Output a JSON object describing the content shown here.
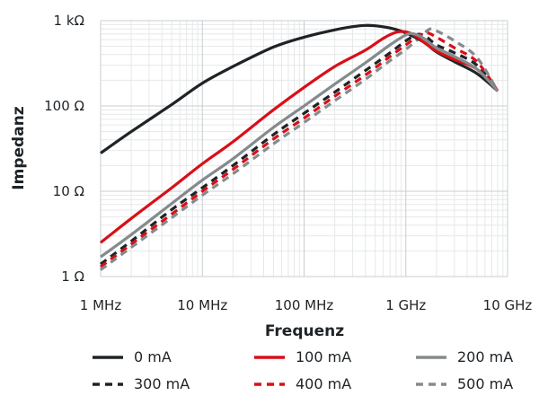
{
  "chart_data": {
    "type": "line",
    "title": "",
    "xlabel": "Frequenz",
    "ylabel": "Impedanz",
    "x_scale": "log",
    "y_scale": "log",
    "xlim": [
      1000000,
      10000000000
    ],
    "ylim": [
      1,
      1000
    ],
    "grid": true,
    "legend_position": "bottom",
    "x_ticks": [
      {
        "value": 1000000,
        "label": "1 MHz"
      },
      {
        "value": 10000000,
        "label": "10 MHz"
      },
      {
        "value": 100000000,
        "label": "100 MHz"
      },
      {
        "value": 1000000000,
        "label": "1 GHz"
      },
      {
        "value": 10000000000,
        "label": "10 GHz"
      }
    ],
    "y_ticks": [
      {
        "value": 1,
        "label": "1 Ω"
      },
      {
        "value": 10,
        "label": "10 Ω"
      },
      {
        "value": 100,
        "label": "100 Ω"
      },
      {
        "value": 1000,
        "label": "1 kΩ"
      }
    ],
    "series": [
      {
        "name": "0 mA",
        "color": "#1f2326",
        "dash": "solid",
        "points": [
          [
            1000000,
            28
          ],
          [
            2000000,
            50
          ],
          [
            5000000,
            104
          ],
          [
            10000000,
            185
          ],
          [
            20000000,
            290
          ],
          [
            50000000,
            490
          ],
          [
            100000000,
            640
          ],
          [
            200000000,
            780
          ],
          [
            300000000,
            850
          ],
          [
            400000000,
            880
          ],
          [
            500000000,
            870
          ],
          [
            700000000,
            820
          ],
          [
            1000000000,
            720
          ],
          [
            1500000000,
            560
          ],
          [
            2000000000,
            430
          ],
          [
            3000000000,
            330
          ],
          [
            5000000000,
            240
          ],
          [
            8000000000,
            150
          ]
        ]
      },
      {
        "name": "100 mA",
        "color": "#d90f18",
        "dash": "solid",
        "points": [
          [
            1000000,
            2.5
          ],
          [
            2000000,
            4.8
          ],
          [
            5000000,
            11
          ],
          [
            10000000,
            21
          ],
          [
            20000000,
            38
          ],
          [
            50000000,
            90
          ],
          [
            100000000,
            165
          ],
          [
            200000000,
            290
          ],
          [
            400000000,
            450
          ],
          [
            600000000,
            620
          ],
          [
            800000000,
            730
          ],
          [
            1000000000,
            740
          ],
          [
            1200000000,
            680
          ],
          [
            1500000000,
            560
          ],
          [
            2000000000,
            440
          ],
          [
            3000000000,
            350
          ],
          [
            5000000000,
            270
          ],
          [
            8000000000,
            150
          ]
        ]
      },
      {
        "name": "200 mA",
        "color": "#858a8c",
        "dash": "solid",
        "points": [
          [
            1000000,
            1.7
          ],
          [
            2000000,
            3.1
          ],
          [
            5000000,
            7.2
          ],
          [
            10000000,
            13.5
          ],
          [
            20000000,
            24
          ],
          [
            50000000,
            56
          ],
          [
            100000000,
            100
          ],
          [
            200000000,
            180
          ],
          [
            400000000,
            320
          ],
          [
            700000000,
            520
          ],
          [
            1000000000,
            680
          ],
          [
            1200000000,
            700
          ],
          [
            1500000000,
            620
          ],
          [
            2000000000,
            480
          ],
          [
            3000000000,
            380
          ],
          [
            5000000000,
            270
          ],
          [
            8000000000,
            150
          ]
        ]
      },
      {
        "name": "300 mA",
        "color": "#1f2326",
        "dash": "dashed",
        "points": [
          [
            1000000,
            1.4
          ],
          [
            2000000,
            2.6
          ],
          [
            5000000,
            6.1
          ],
          [
            10000000,
            11
          ],
          [
            20000000,
            20
          ],
          [
            50000000,
            46
          ],
          [
            100000000,
            82
          ],
          [
            200000000,
            145
          ],
          [
            400000000,
            260
          ],
          [
            700000000,
            420
          ],
          [
            1000000000,
            580
          ],
          [
            1300000000,
            690
          ],
          [
            1600000000,
            640
          ],
          [
            2000000000,
            520
          ],
          [
            3000000000,
            420
          ],
          [
            5000000000,
            300
          ],
          [
            8000000000,
            150
          ]
        ]
      },
      {
        "name": "400 mA",
        "color": "#d90f18",
        "dash": "dashed",
        "points": [
          [
            1000000,
            1.3
          ],
          [
            2000000,
            2.4
          ],
          [
            5000000,
            5.4
          ],
          [
            10000000,
            10
          ],
          [
            20000000,
            18
          ],
          [
            50000000,
            41
          ],
          [
            100000000,
            72
          ],
          [
            200000000,
            130
          ],
          [
            400000000,
            230
          ],
          [
            700000000,
            380
          ],
          [
            1000000000,
            520
          ],
          [
            1300000000,
            650
          ],
          [
            1600000000,
            720
          ],
          [
            2000000000,
            640
          ],
          [
            3000000000,
            480
          ],
          [
            5000000000,
            330
          ],
          [
            8000000000,
            150
          ]
        ]
      },
      {
        "name": "500 mA",
        "color": "#858a8c",
        "dash": "dashed",
        "points": [
          [
            1000000,
            1.2
          ],
          [
            2000000,
            2.2
          ],
          [
            5000000,
            4.9
          ],
          [
            10000000,
            9
          ],
          [
            20000000,
            16
          ],
          [
            50000000,
            36
          ],
          [
            100000000,
            64
          ],
          [
            200000000,
            115
          ],
          [
            400000000,
            205
          ],
          [
            700000000,
            340
          ],
          [
            1000000000,
            460
          ],
          [
            1300000000,
            600
          ],
          [
            1700000000,
            790
          ],
          [
            2000000000,
            760
          ],
          [
            3000000000,
            580
          ],
          [
            5000000000,
            370
          ],
          [
            8000000000,
            150
          ]
        ]
      }
    ]
  }
}
